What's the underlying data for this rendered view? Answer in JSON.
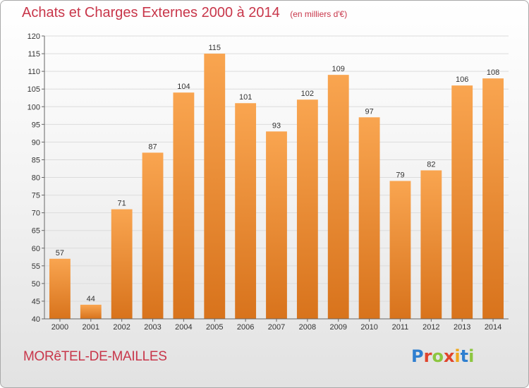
{
  "header": {
    "title": "Achats et Charges Externes 2000 à 2014",
    "subtitle": "(en milliers d'€)"
  },
  "footer": {
    "place": "MORêTEL-DE-MAILLES",
    "logo_text": "Proxiti",
    "logo_colors": [
      "#2f7fd0",
      "#e0442c",
      "#8cc63f",
      "#e0442c",
      "#f0a81c",
      "#2f7fd0",
      "#8cc63f"
    ]
  },
  "colors": {
    "title": "#c8364a",
    "bar_light": "#f9a550",
    "bar_dark": "#d8731c",
    "grid": "#dcdcdc",
    "axis": "#666666",
    "text": "#333333"
  },
  "chart_data": {
    "type": "bar",
    "categories": [
      "2000",
      "2001",
      "2002",
      "2003",
      "2004",
      "2005",
      "2006",
      "2007",
      "2008",
      "2009",
      "2010",
      "2011",
      "2012",
      "2013",
      "2014"
    ],
    "values": [
      57,
      44,
      71,
      87,
      104,
      115,
      101,
      93,
      102,
      109,
      97,
      79,
      82,
      106,
      108
    ],
    "ylim": [
      40,
      120
    ],
    "ytick_step": 5,
    "grid": true,
    "data_labels": true
  }
}
